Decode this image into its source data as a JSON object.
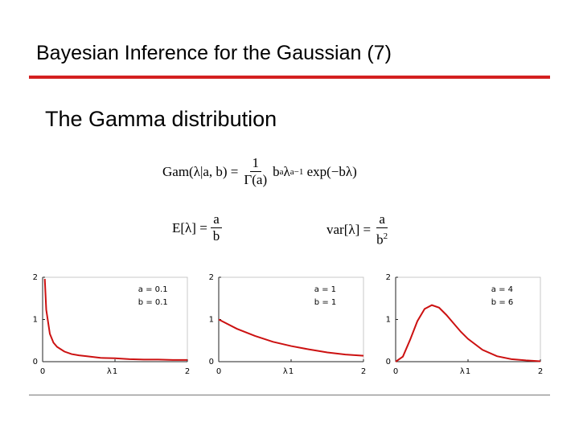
{
  "header": {
    "title": "Bayesian Inference for the Gaussian (7)"
  },
  "subtitle": "The Gamma distribution",
  "formulas": {
    "gamma": {
      "lhs": "Gam(λ|a, b) =",
      "numerator": "1",
      "denominator": "Γ(a)",
      "base1": "b",
      "exp1": "a",
      "base2": "λ",
      "exp2": "a−1",
      "tail": "exp(−bλ)"
    },
    "mean": {
      "lhs": "E[λ] =",
      "numerator": "a",
      "denominator": "b"
    },
    "variance": {
      "lhs": "var[λ] =",
      "numerator": "a",
      "denominator": "b",
      "exponent": "2"
    }
  },
  "chart_data": [
    {
      "type": "line",
      "xlabel": "λ",
      "annotations": [
        "a = 0.1",
        "b = 0.1"
      ],
      "x": [
        0.03,
        0.05,
        0.1,
        0.15,
        0.2,
        0.3,
        0.4,
        0.5,
        0.6,
        0.8,
        1.0,
        1.2,
        1.4,
        1.6,
        1.8,
        2.0
      ],
      "series": [
        {
          "color": "#cc1111",
          "values": [
            1.96,
            1.23,
            0.66,
            0.45,
            0.35,
            0.24,
            0.18,
            0.15,
            0.13,
            0.09,
            0.08,
            0.06,
            0.05,
            0.05,
            0.04,
            0.04
          ]
        }
      ],
      "xlim": [
        0,
        2
      ],
      "ylim": [
        0,
        2
      ],
      "xticks": [
        0,
        1,
        2
      ],
      "yticks": [
        0,
        1,
        2
      ]
    },
    {
      "type": "line",
      "xlabel": "λ",
      "annotations": [
        "a = 1",
        "b = 1"
      ],
      "x": [
        0,
        0.25,
        0.5,
        0.75,
        1.0,
        1.25,
        1.5,
        1.75,
        2.0
      ],
      "series": [
        {
          "color": "#cc1111",
          "values": [
            1,
            0.78,
            0.61,
            0.47,
            0.37,
            0.29,
            0.22,
            0.17,
            0.14
          ]
        }
      ],
      "xlim": [
        0,
        2
      ],
      "ylim": [
        0,
        2
      ],
      "xticks": [
        0,
        1,
        2
      ],
      "yticks": [
        0,
        1,
        2
      ]
    },
    {
      "type": "line",
      "xlabel": "λ",
      "annotations": [
        "a = 4",
        "b = 6"
      ],
      "x": [
        0,
        0.1,
        0.2,
        0.3,
        0.4,
        0.5,
        0.6,
        0.7,
        0.8,
        0.9,
        1.0,
        1.2,
        1.4,
        1.6,
        1.8,
        2.0
      ],
      "series": [
        {
          "color": "#cc1111",
          "values": [
            0,
            0.12,
            0.52,
            0.96,
            1.25,
            1.34,
            1.28,
            1.11,
            0.91,
            0.71,
            0.54,
            0.28,
            0.13,
            0.06,
            0.03,
            0.01
          ]
        }
      ],
      "xlim": [
        0,
        2
      ],
      "ylim": [
        0,
        2
      ],
      "xticks": [
        0,
        1,
        2
      ],
      "yticks": [
        0,
        1,
        2
      ]
    }
  ]
}
